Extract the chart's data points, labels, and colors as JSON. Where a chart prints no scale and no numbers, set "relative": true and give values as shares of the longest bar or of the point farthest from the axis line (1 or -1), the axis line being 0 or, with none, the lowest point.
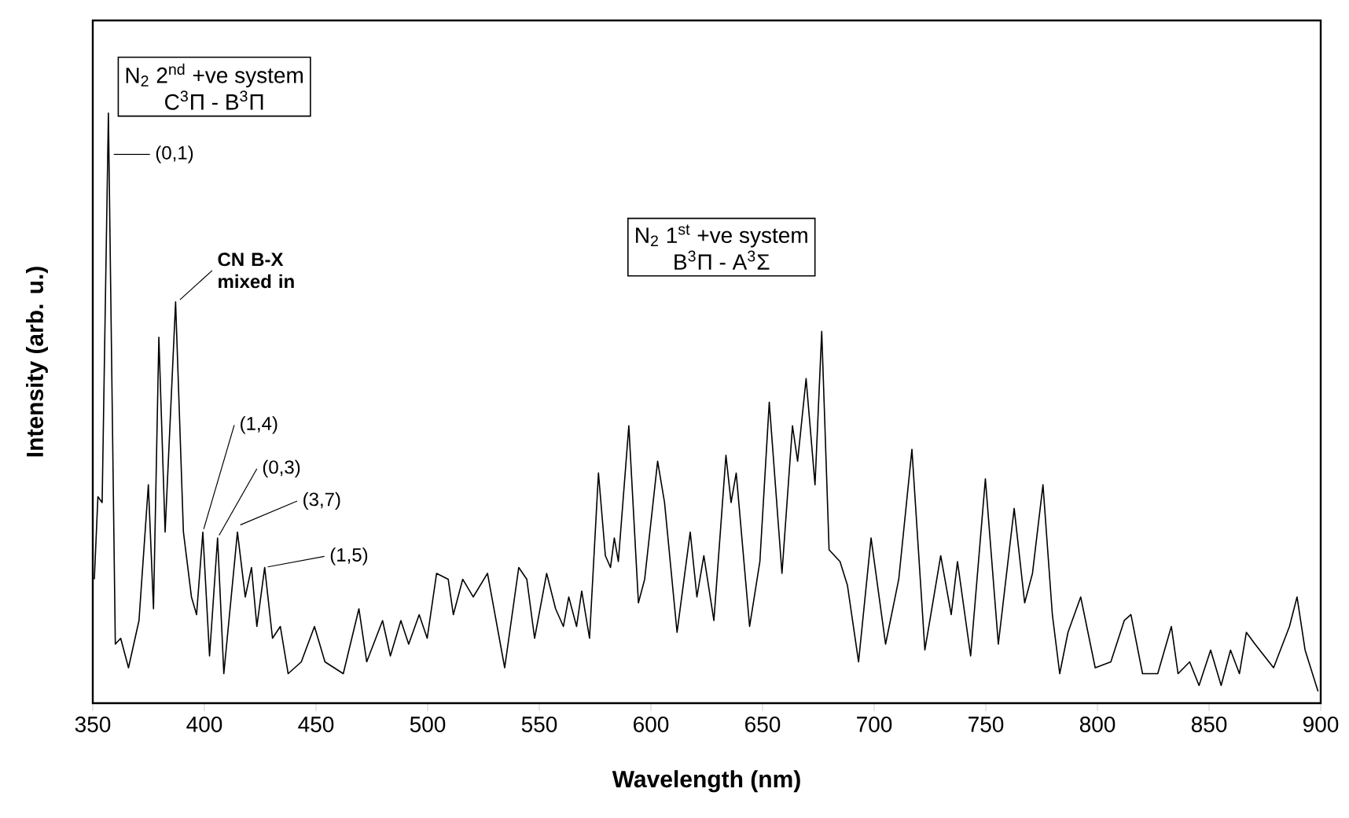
{
  "chart_data": {
    "type": "line",
    "relative": true,
    "xlabel": "Wavelength (nm)",
    "ylabel": "Intensity (arb. u.)",
    "xlim": [
      350,
      900
    ],
    "xticks": [
      350,
      400,
      450,
      500,
      550,
      600,
      650,
      700,
      750,
      800,
      850,
      900
    ],
    "color": "#000000",
    "x": [
      350.7,
      352.3,
      354.2,
      357,
      360.1,
      362.5,
      366,
      370.7,
      374.9,
      377.2,
      379.6,
      382.4,
      387.1,
      390.6,
      394.2,
      396.5,
      399.3,
      402.3,
      405.9,
      408.7,
      414.8,
      418.3,
      421.1,
      423.5,
      427,
      430.5,
      434,
      437.5,
      443.4,
      449.3,
      454,
      462.2,
      469.2,
      472.7,
      479.8,
      483.3,
      488,
      491.5,
      496.2,
      499.8,
      504,
      509.2,
      511.5,
      515.7,
      520.4,
      526.8,
      534.5,
      540.8,
      544.4,
      547.9,
      553.3,
      557.3,
      560.8,
      563.2,
      566.7,
      569,
      572.5,
      576.5,
      579.6,
      581.9,
      583.6,
      585.4,
      590.1,
      594.4,
      597.2,
      603,
      606.1,
      611.7,
      617.6,
      620.6,
      623.7,
      628.2,
      633.6,
      635.9,
      638.2,
      644.2,
      648.8,
      653,
      658.7,
      663.4,
      665.7,
      669.5,
      673.5,
      676.5,
      679.8,
      684.7,
      688,
      693,
      698.6,
      705.1,
      711,
      716.9,
      722.7,
      729.8,
      734.5,
      737.3,
      743.2,
      749.8,
      755.6,
      762.7,
      767.4,
      770.9,
      775.6,
      779.8,
      783.1,
      786.8,
      792.5,
      799,
      806,
      812,
      815,
      820.2,
      827,
      833.1,
      836.1,
      841.3,
      845.5,
      850.7,
      855.4,
      859.6,
      863.6,
      866.7,
      870.6,
      878.9,
      886,
      889.4,
      893,
      898.8
    ],
    "values": [
      0.21,
      0.35,
      0.34,
      1.0,
      0.1,
      0.11,
      0.06,
      0.14,
      0.37,
      0.16,
      0.62,
      0.29,
      0.68,
      0.29,
      0.18,
      0.15,
      0.29,
      0.08,
      0.28,
      0.05,
      0.29,
      0.18,
      0.23,
      0.13,
      0.23,
      0.11,
      0.13,
      0.05,
      0.07,
      0.13,
      0.07,
      0.05,
      0.16,
      0.07,
      0.14,
      0.08,
      0.14,
      0.1,
      0.15,
      0.11,
      0.22,
      0.21,
      0.15,
      0.21,
      0.18,
      0.22,
      0.06,
      0.23,
      0.21,
      0.11,
      0.22,
      0.16,
      0.13,
      0.18,
      0.13,
      0.19,
      0.11,
      0.39,
      0.25,
      0.23,
      0.28,
      0.24,
      0.47,
      0.17,
      0.21,
      0.41,
      0.34,
      0.12,
      0.29,
      0.18,
      0.25,
      0.14,
      0.42,
      0.34,
      0.39,
      0.13,
      0.24,
      0.51,
      0.22,
      0.47,
      0.41,
      0.55,
      0.37,
      0.63,
      0.26,
      0.24,
      0.2,
      0.07,
      0.28,
      0.1,
      0.21,
      0.43,
      0.09,
      0.25,
      0.15,
      0.24,
      0.08,
      0.38,
      0.1,
      0.33,
      0.17,
      0.22,
      0.37,
      0.15,
      0.05,
      0.12,
      0.18,
      0.06,
      0.07,
      0.14,
      0.15,
      0.05,
      0.05,
      0.13,
      0.05,
      0.07,
      0.03,
      0.09,
      0.03,
      0.09,
      0.05,
      0.12,
      0.1,
      0.06,
      0.13,
      0.18,
      0.09,
      0.02
    ],
    "annotations": [
      "N$_{2}$ 2$^{nd}$ +ve system",
      "C$^{3}$Π - B$^{3}$Π",
      "N$_{2}$ 1$^{st}$ +ve system",
      "B$^{3}$Π - A$^{3}$Σ",
      {
        "text": "(0,1)",
        "x": 358,
        "y": 0.93
      },
      {
        "text": "CN B-X mixed in",
        "x": 388,
        "y": 0.68
      },
      {
        "text": "(1,4)",
        "x": 399.3,
        "y": 0.29
      },
      {
        "text": "(0,3)",
        "x": 405.9,
        "y": 0.28
      },
      {
        "text": "(3,7)",
        "x": 414.8,
        "y": 0.3
      },
      {
        "text": "(1,5)",
        "x": 427,
        "y": 0.23
      }
    ]
  }
}
